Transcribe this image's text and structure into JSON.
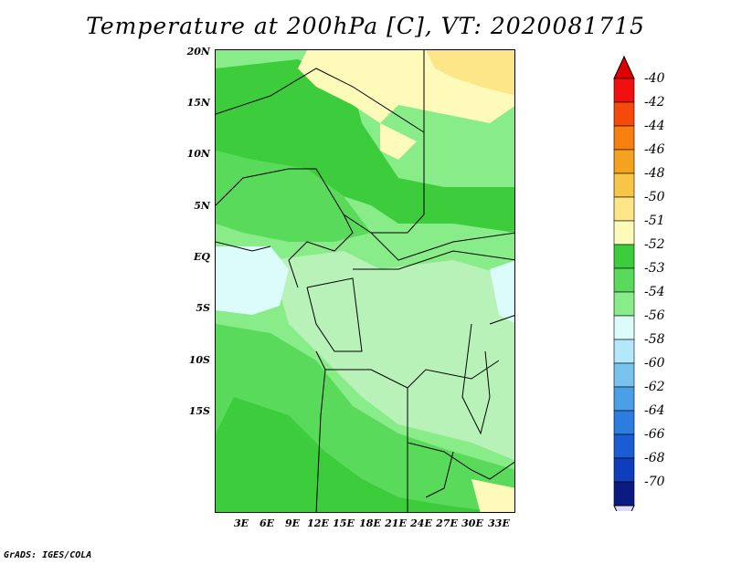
{
  "title": "Temperature at 200hPa [C], VT: 2020081715",
  "footer": "GrADS: IGES/COLA",
  "axes": {
    "y_ticks": [
      "20N",
      "15N",
      "10N",
      "5N",
      "EQ",
      "5S",
      "10S",
      "15S"
    ],
    "x_ticks": [
      "3E",
      "6E",
      "9E",
      "12E",
      "15E",
      "18E",
      "21E",
      "24E",
      "27E",
      "30E",
      "33E"
    ]
  },
  "legend": {
    "labels": [
      "-40",
      "-42",
      "-44",
      "-46",
      "-48",
      "-50",
      "-51",
      "-52",
      "-53",
      "-54",
      "-56",
      "-58",
      "-60",
      "-62",
      "-64",
      "-66",
      "-68",
      "-70"
    ],
    "colors": [
      "#f01010",
      "#f54a0a",
      "#f77f10",
      "#f5a21e",
      "#f8c646",
      "#fde688",
      "#fefaba",
      "#3ccc3c",
      "#5ada5a",
      "#88ec88",
      "#dcfcfc",
      "#b4e6fc",
      "#78c3ee",
      "#4a9fe6",
      "#2b7ddf",
      "#1a5cd2",
      "#0e3ebb",
      "#0a1a80"
    ],
    "top_arrow_color": "#e00000",
    "bottom_arrow_color": "#dcdcfa"
  },
  "fields": {
    "palette": {
      "warm_light": "#fefaba",
      "warm": "#fde688",
      "green_dark": "#3ccc3c",
      "green_mid": "#5ada5a",
      "green_light": "#88ec88",
      "green_pale": "#b8f2b8",
      "cyan": "#dcfcfc"
    }
  }
}
